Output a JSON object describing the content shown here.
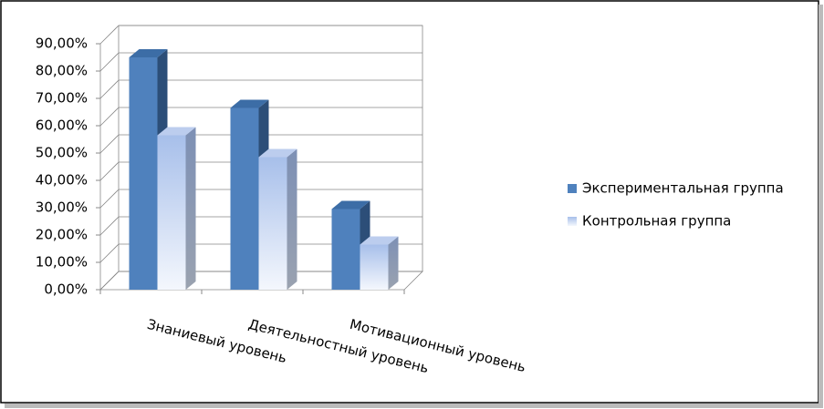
{
  "chart_data": {
    "type": "bar3d",
    "categories": [
      "Знаниевый уровень",
      "Деятельностный уровень",
      "Мотивационный уровень"
    ],
    "series": [
      {
        "name": "Экспериментальная группа",
        "color": "#4f81bd",
        "values": [
          85,
          66.5,
          29.5
        ]
      },
      {
        "name": "Контрольная группа",
        "color": "#a7bfea",
        "values": [
          56.5,
          48.5,
          16.5
        ]
      }
    ],
    "ylim": [
      0,
      90
    ],
    "yticks": [
      {
        "value": 0,
        "label": "0,00%"
      },
      {
        "value": 10,
        "label": "10,00%"
      },
      {
        "value": 20,
        "label": "20,00%"
      },
      {
        "value": 30,
        "label": "30,00%"
      },
      {
        "value": 40,
        "label": "40,00%"
      },
      {
        "value": 50,
        "label": "50,00%"
      },
      {
        "value": 60,
        "label": "60,00%"
      },
      {
        "value": 70,
        "label": "70,00%"
      },
      {
        "value": 80,
        "label": "80,00%"
      },
      {
        "value": 90,
        "label": "90,00%"
      }
    ],
    "grid": true,
    "legend": "right"
  }
}
